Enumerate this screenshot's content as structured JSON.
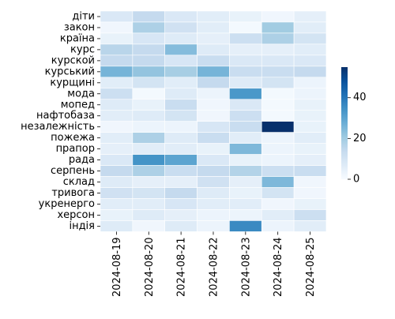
{
  "chart_data": {
    "type": "heatmap",
    "title": "",
    "xlabel": "",
    "ylabel": "",
    "x_categories": [
      "2024-08-19",
      "2024-08-20",
      "2024-08-21",
      "2024-08-22",
      "2024-08-23",
      "2024-08-24",
      "2024-08-25"
    ],
    "y_categories": [
      "діти",
      "закон",
      "країна",
      "курс",
      "курской",
      "курський",
      "курщині",
      "мода",
      "мопед",
      "нафтобаза",
      "незалежність",
      "пожежа",
      "прапор",
      "рада",
      "серпень",
      "склад",
      "тривога",
      "укренерго",
      "херсон",
      "індія"
    ],
    "values": [
      [
        8,
        14,
        8,
        6,
        4,
        2,
        5
      ],
      [
        2,
        18,
        11,
        6,
        1,
        20,
        6
      ],
      [
        4,
        9,
        7,
        5,
        12,
        18,
        10
      ],
      [
        16,
        14,
        24,
        7,
        5,
        5,
        6
      ],
      [
        14,
        14,
        9,
        13,
        8,
        8,
        8
      ],
      [
        26,
        22,
        19,
        26,
        13,
        13,
        14
      ],
      [
        6,
        10,
        6,
        14,
        7,
        10,
        3
      ],
      [
        12,
        1,
        7,
        3,
        33,
        1,
        3
      ],
      [
        7,
        4,
        13,
        2,
        8,
        1,
        4
      ],
      [
        6,
        7,
        10,
        2,
        12,
        1,
        4
      ],
      [
        2,
        3,
        3,
        9,
        13,
        55,
        4
      ],
      [
        6,
        18,
        7,
        13,
        6,
        3,
        6
      ],
      [
        5,
        6,
        6,
        4,
        25,
        3,
        4
      ],
      [
        8,
        34,
        30,
        8,
        4,
        3,
        5
      ],
      [
        14,
        18,
        13,
        14,
        17,
        12,
        13
      ],
      [
        7,
        5,
        5,
        11,
        5,
        25,
        2
      ],
      [
        11,
        10,
        14,
        7,
        4,
        10,
        2
      ],
      [
        6,
        6,
        9,
        6,
        6,
        2,
        4
      ],
      [
        4,
        7,
        5,
        3,
        3,
        6,
        12
      ],
      [
        7,
        2,
        7,
        3,
        36,
        3,
        6
      ]
    ],
    "colorbar": {
      "min": 0,
      "max": 55,
      "ticks": [
        0,
        20,
        40
      ],
      "colormap": "Blues",
      "position": "right"
    },
    "grid": true,
    "cell_border_color": "#ffffff"
  }
}
